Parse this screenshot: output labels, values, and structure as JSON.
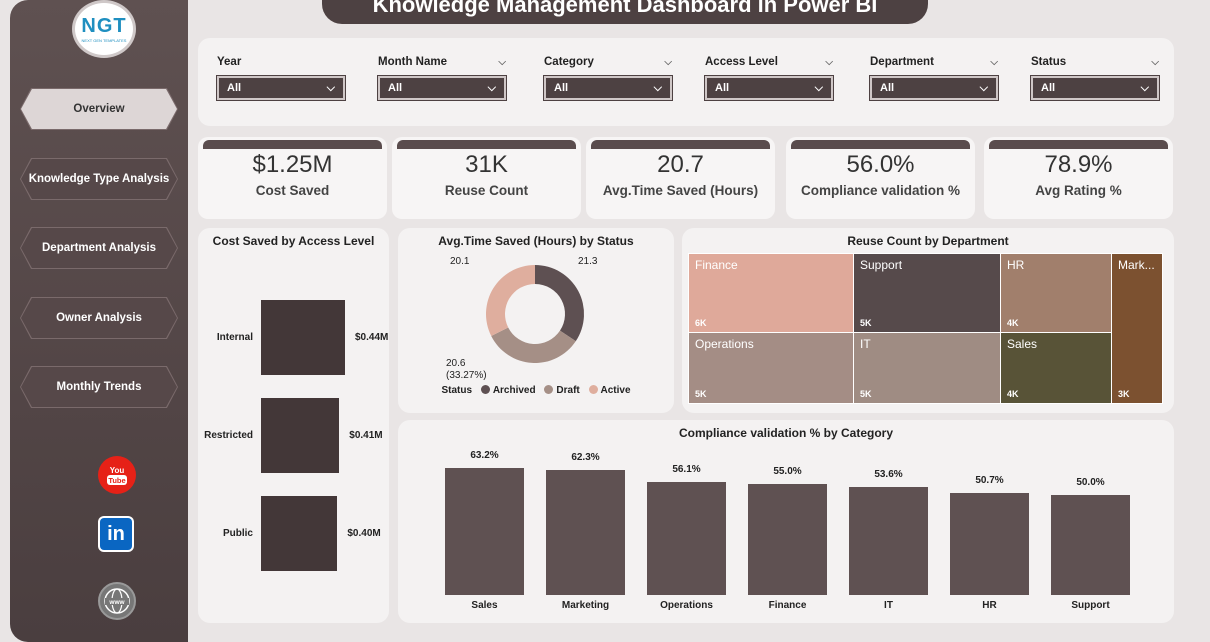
{
  "title": "Knowledge Management Dashboard in Power BI",
  "logo": {
    "text": "NGT",
    "sub": "NEXT GEN TEMPLATES"
  },
  "nav": [
    {
      "label": "Overview"
    },
    {
      "label": "Knowledge Type Analysis"
    },
    {
      "label": "Department Analysis"
    },
    {
      "label": "Owner Analysis"
    },
    {
      "label": "Monthly Trends"
    }
  ],
  "filters": [
    {
      "label": "Year",
      "value": "All"
    },
    {
      "label": "Month Name",
      "value": "All"
    },
    {
      "label": "Category",
      "value": "All"
    },
    {
      "label": "Access Level",
      "value": "All"
    },
    {
      "label": "Department",
      "value": "All"
    },
    {
      "label": "Status",
      "value": "All"
    }
  ],
  "kpis": [
    {
      "value": "$1.25M",
      "label": "Cost Saved"
    },
    {
      "value": "31K",
      "label": "Reuse Count"
    },
    {
      "value": "20.7",
      "label": "Avg.Time Saved (Hours)"
    },
    {
      "value": "56.0%",
      "label": "Compliance validation %"
    },
    {
      "value": "78.9%",
      "label": "Avg Rating %"
    }
  ],
  "colors": {
    "sidebar": "#4a3e3f",
    "accent": "#5a4c4d",
    "archived": "#5e5052",
    "draft": "#a58f86",
    "active": "#dfae9e"
  },
  "social": {
    "youtube": "You Tube",
    "linkedin": "in",
    "web": "www"
  },
  "chart_data": [
    {
      "type": "bar",
      "title": "Cost Saved by Access Level",
      "categories": [
        "Internal",
        "Restricted",
        "Public"
      ],
      "values": [
        0.44,
        0.41,
        0.4
      ],
      "labels": [
        "$0.44M",
        "$0.41M",
        "$0.40M"
      ],
      "xlim": [
        0,
        0.5
      ]
    },
    {
      "type": "pie",
      "title": "Avg.Time Saved (Hours) by Status",
      "legend_title": "Status",
      "slices": [
        {
          "name": "Archived",
          "value": 21.3,
          "label": "21.3 (34.34%)"
        },
        {
          "name": "Draft",
          "value": 20.6,
          "label": "20.6 (33.27%)"
        },
        {
          "name": "Active",
          "value": 20.1,
          "label": "20.1 (32.38%)"
        }
      ]
    },
    {
      "type": "heatmap",
      "title": "Reuse Count by Department",
      "cells": [
        {
          "name": "Finance",
          "label": "6K"
        },
        {
          "name": "Support",
          "label": "5K"
        },
        {
          "name": "HR",
          "label": "4K"
        },
        {
          "name": "Mark...",
          "label": "3K"
        },
        {
          "name": "Operations",
          "label": "5K"
        },
        {
          "name": "IT",
          "label": "5K"
        },
        {
          "name": "Sales",
          "label": "4K"
        }
      ]
    },
    {
      "type": "bar",
      "title": "Compliance validation % by Category",
      "categories": [
        "Sales",
        "Marketing",
        "Operations",
        "Finance",
        "IT",
        "HR",
        "Support"
      ],
      "values": [
        63.2,
        62.3,
        56.1,
        55.0,
        53.6,
        50.7,
        50.0
      ],
      "labels": [
        "63.2%",
        "62.3%",
        "56.1%",
        "55.0%",
        "53.6%",
        "50.7%",
        "50.0%"
      ],
      "ylim": [
        0,
        70
      ]
    }
  ]
}
